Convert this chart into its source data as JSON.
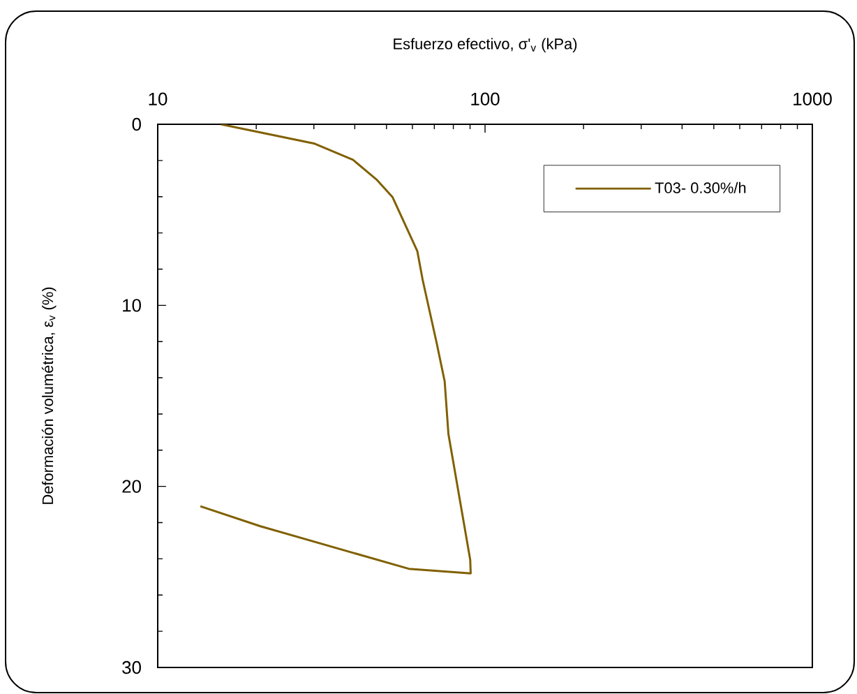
{
  "chart_data": {
    "type": "line",
    "xlabel": "Esfuerzo efectivo, σ'$_{v}$ (kPa)",
    "ylabel": "Deformación volumétrica, ε$_{v}$ (%)",
    "log": "x",
    "xlim": [
      10,
      1000
    ],
    "xticks": [
      10,
      100,
      1000
    ],
    "ylim": [
      30,
      0
    ],
    "yticks": [
      0,
      10,
      20,
      30
    ],
    "grid": false,
    "legend": "top right",
    "marker": "none",
    "line_style": "solid",
    "series": [
      {
        "name": "T03- 0.30%/h",
        "color": "#806000",
        "x": [
          15.6,
          30.0,
          39.5,
          46.6,
          52.2,
          62.1,
          64.5,
          71.2,
          75.3,
          77.3,
          90.1,
          90.4,
          58.5,
          20.6,
          13.5
        ],
        "values": [
          0,
          1.06,
          1.96,
          3.05,
          4.03,
          7.0,
          8.6,
          12.1,
          14.2,
          17.1,
          24.05,
          24.8,
          24.55,
          22.2,
          21.1
        ]
      }
    ]
  }
}
